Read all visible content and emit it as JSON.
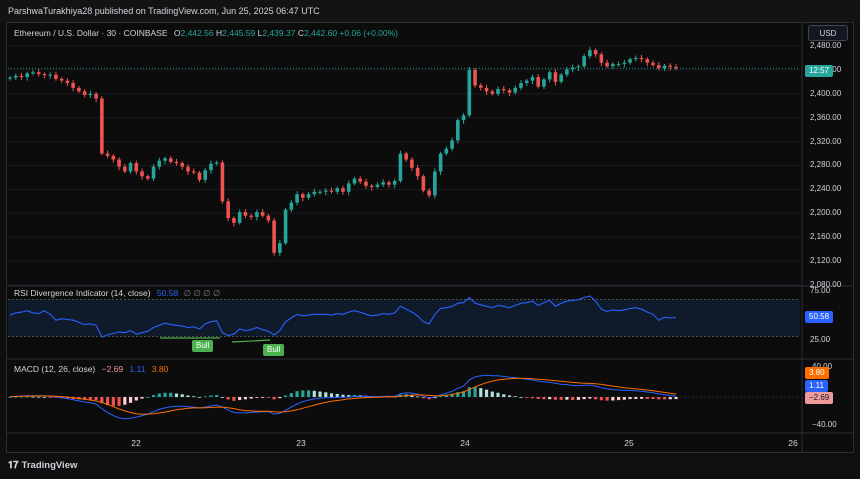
{
  "header": {
    "published": "ParshwaTurakhiya28 published on TradingView.com, Jun 25, 2025 06:47 UTC"
  },
  "legend": {
    "symbol": "Ethereum / U.S. Dollar · 30 · COINBASE",
    "o_label": "O",
    "o": "2,442.56",
    "h_label": "H",
    "h": "2,445.59",
    "l_label": "L",
    "l": "2,439.37",
    "c_label": "C",
    "c": "2,442.60",
    "change": "+0.06 (+0.00%)"
  },
  "currency_button": "USD",
  "price_axis": {
    "ticks": [
      "2,480.00",
      "2,440.00",
      "2,400.00",
      "2,360.00",
      "2,320.00",
      "2,280.00",
      "2,240.00",
      "2,200.00",
      "2,160.00",
      "2,120.00",
      "2,080.00"
    ],
    "current_price_label": "12:57"
  },
  "rsi": {
    "title": "RSI Divergence Indicator (14, close)",
    "value_label": "50.58",
    "extra": "∅ ∅ ∅ ∅",
    "upper": "75.00",
    "lower": "25.00",
    "badge": "50.58",
    "bull_labels": [
      "Bull",
      "Bull"
    ]
  },
  "macd": {
    "title": "MACD (12, 26, close)",
    "hist": "−2.69",
    "macd": "1.11",
    "signal": "3.80",
    "axis_top": "40.00",
    "axis_bottom": "−40.00",
    "badge_signal": "3.80",
    "badge_macd": "1.11",
    "badge_hist": "−2.69"
  },
  "time_axis": {
    "labels": [
      "22",
      "23",
      "24",
      "25",
      "26"
    ]
  },
  "footer": {
    "brand": "TradingView"
  },
  "colors": {
    "up": "#26a69a",
    "down": "#ef5350",
    "rsi_line": "#2962ff",
    "macd_line": "#2962ff",
    "signal_line": "#ff6d00",
    "price_tag": "#26a69a",
    "bull": "#4caf50"
  },
  "chart_data": [
    {
      "type": "candlestick",
      "title": "Ethereum / U.S. Dollar · 30 · COINBASE",
      "ylim": [
        2080,
        2490
      ],
      "x_labels": [
        "22",
        "23",
        "24",
        "25",
        "26"
      ],
      "ohlc_close_series": [
        2427,
        2430,
        2428,
        2434,
        2436,
        2433,
        2431,
        2432,
        2425,
        2422,
        2418,
        2410,
        2404,
        2398,
        2400,
        2392,
        2300,
        2296,
        2290,
        2278,
        2270,
        2284,
        2270,
        2262,
        2258,
        2278,
        2288,
        2292,
        2286,
        2284,
        2278,
        2270,
        2268,
        2256,
        2272,
        2283,
        2285,
        2220,
        2192,
        2184,
        2202,
        2196,
        2194,
        2202,
        2196,
        2188,
        2134,
        2150,
        2206,
        2218,
        2232,
        2226,
        2232,
        2236,
        2236,
        2238,
        2236,
        2242,
        2236,
        2250,
        2258,
        2253,
        2246,
        2244,
        2248,
        2252,
        2248,
        2254,
        2300,
        2290,
        2276,
        2262,
        2238,
        2230,
        2270,
        2300,
        2308,
        2322,
        2356,
        2364,
        2440,
        2414,
        2410,
        2404,
        2400,
        2408,
        2406,
        2402,
        2410,
        2418,
        2422,
        2428,
        2412,
        2424,
        2436,
        2420,
        2432,
        2441,
        2444,
        2446,
        2463,
        2473,
        2466,
        2452,
        2446,
        2450,
        2450,
        2452,
        2458,
        2460,
        2458,
        2452,
        2448,
        2443,
        2447,
        2445,
        2442.6
      ],
      "last": {
        "open": 2442.56,
        "high": 2445.59,
        "low": 2439.37,
        "close": 2442.6
      }
    },
    {
      "type": "line",
      "title": "RSI Divergence Indicator (14, close)",
      "ylim": [
        0,
        100
      ],
      "series": [
        {
          "values": [
            54,
            57,
            58,
            60,
            57,
            56,
            60,
            55,
            47,
            49,
            48,
            47,
            44,
            41,
            42,
            40,
            24,
            27,
            29,
            31,
            30,
            33,
            28,
            30,
            32,
            37,
            40,
            43,
            41,
            40,
            39,
            37,
            38,
            35,
            42,
            45,
            46,
            30,
            26,
            28,
            35,
            33,
            34,
            37,
            34,
            32,
            27,
            33,
            45,
            50,
            55,
            53,
            54,
            55,
            55,
            55,
            54,
            56,
            55,
            58,
            60,
            58,
            55,
            53,
            54,
            56,
            55,
            57,
            66,
            62,
            58,
            53,
            45,
            42,
            55,
            63,
            64,
            66,
            70,
            71,
            78,
            70,
            68,
            66,
            64,
            67,
            66,
            64,
            67,
            70,
            71,
            73,
            67,
            71,
            74,
            66,
            70,
            73,
            74,
            75,
            78,
            80,
            73,
            62,
            59,
            61,
            60,
            61,
            63,
            64,
            62,
            58,
            55,
            47,
            51,
            50,
            50.58
          ]
        }
      ],
      "levels": [
        75,
        25
      ]
    },
    {
      "type": "line",
      "title": "MACD (12, 26, close)",
      "ylim": [
        -40,
        40
      ],
      "series": [
        {
          "values": [
            0.5,
            1.0,
            1.3,
            1.6,
            1.7,
            1.6,
            1.4,
            1.0,
            0.0,
            -1.0,
            -2.0,
            -3.5,
            -5.0,
            -6.5,
            -7.5,
            -9.0,
            -15.0,
            -20.0,
            -24.0,
            -27.0,
            -28.0,
            -27.5,
            -26.0,
            -24.0,
            -22.0,
            -19.0,
            -16.0,
            -14.0,
            -12.5,
            -12.0,
            -12.0,
            -12.5,
            -13.0,
            -14.0,
            -13.0,
            -11.5,
            -10.5,
            -13.0,
            -17.0,
            -20.0,
            -20.5,
            -20.5,
            -20.0,
            -19.5,
            -19.0,
            -19.0,
            -22.0,
            -21.0,
            -17.0,
            -13.0,
            -9.0,
            -6.0,
            -4.0,
            -2.5,
            -1.5,
            -1.0,
            -0.8,
            -0.5,
            -0.5,
            0.0,
            0.8,
            1.0,
            0.8,
            0.5,
            0.5,
            0.8,
            0.8,
            1.0,
            4.0,
            5.5,
            5.0,
            3.5,
            1.0,
            -1.0,
            0.0,
            2.5,
            5.0,
            7.5,
            11.0,
            14.0,
            22.0,
            26.0,
            27.5,
            28.0,
            27.5,
            27.5,
            26.5,
            25.5,
            25.0,
            24.0,
            23.0,
            22.0,
            20.5,
            19.5,
            19.0,
            17.5,
            16.5,
            16.0,
            15.0,
            14.5,
            15.0,
            15.5,
            14.0,
            12.0,
            10.5,
            9.5,
            9.0,
            8.5,
            8.5,
            8.0,
            7.5,
            6.5,
            5.5,
            4.0,
            3.0,
            2.0,
            1.11
          ]
        },
        {
          "values": [
            0.5,
            0.7,
            0.9,
            1.1,
            1.3,
            1.4,
            1.4,
            1.3,
            1.0,
            0.5,
            0.0,
            -1.0,
            -2.0,
            -3.0,
            -4.0,
            -5.0,
            -7.0,
            -9.5,
            -12.5,
            -15.5,
            -18.0,
            -20.0,
            -21.5,
            -22.0,
            -22.0,
            -21.5,
            -20.5,
            -19.5,
            -18.0,
            -16.5,
            -15.5,
            -14.5,
            -14.0,
            -14.0,
            -13.8,
            -13.5,
            -13.0,
            -13.0,
            -13.8,
            -15.0,
            -16.5,
            -17.5,
            -18.0,
            -18.5,
            -18.5,
            -18.5,
            -19.0,
            -19.5,
            -19.0,
            -18.0,
            -16.5,
            -14.5,
            -12.5,
            -10.5,
            -8.5,
            -7.0,
            -5.5,
            -4.5,
            -3.5,
            -2.5,
            -1.8,
            -1.2,
            -0.8,
            -0.5,
            -0.3,
            0.0,
            0.2,
            0.4,
            1.0,
            1.8,
            2.5,
            2.8,
            2.6,
            2.0,
            1.5,
            1.6,
            2.2,
            3.2,
            4.8,
            6.5,
            9.5,
            13.0,
            16.0,
            18.5,
            20.5,
            22.0,
            23.0,
            23.5,
            24.0,
            24.0,
            24.0,
            23.6,
            23.0,
            22.4,
            21.8,
            21.0,
            20.2,
            19.5,
            18.8,
            18.2,
            17.8,
            17.5,
            17.0,
            16.2,
            15.2,
            14.0,
            13.0,
            12.0,
            11.2,
            10.5,
            9.8,
            9.0,
            8.0,
            7.0,
            6.0,
            4.9,
            3.8
          ]
        }
      ]
    }
  ]
}
